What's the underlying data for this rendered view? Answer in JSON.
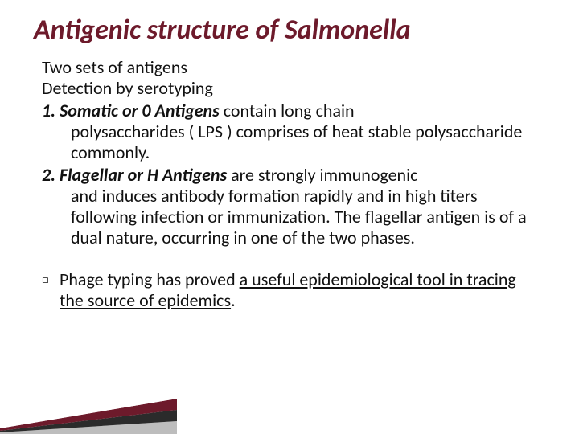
{
  "title": {
    "text": "Antigenic structure of Salmonella",
    "color": "#6d1a2b",
    "fontsize": 34
  },
  "intro": {
    "line1": "Two sets of antigens",
    "line2": "Detection by serotyping"
  },
  "points": [
    {
      "lead": "1. Somatic or 0 Antigens",
      "tail_first": " contain long  chain",
      "cont": "polysaccharides  ( LPS ) comprises of heat stable polysaccharide commonly."
    },
    {
      "lead": "2. Flagellar or H Antigens",
      "tail_first": " are strongly immunogenic",
      "cont": "and induces antibody formation rapidly and in high titers following infection or immunization. The flagellar antigen is of a dual nature, occurring in one of the two phases."
    }
  ],
  "bullet": {
    "glyph": "□",
    "pre": "Phage typing has proved ",
    "under": "a useful epidemiological tool in tracing the source of epidemics",
    "post": "."
  },
  "decor": {
    "stripes": [
      {
        "color": "#ffffff"
      },
      {
        "color": "#bdbdbd"
      },
      {
        "color": "#2b2b2b"
      },
      {
        "color": "#6d1a2b"
      },
      {
        "color": "#ffffff"
      }
    ]
  },
  "background": "#ffffff"
}
